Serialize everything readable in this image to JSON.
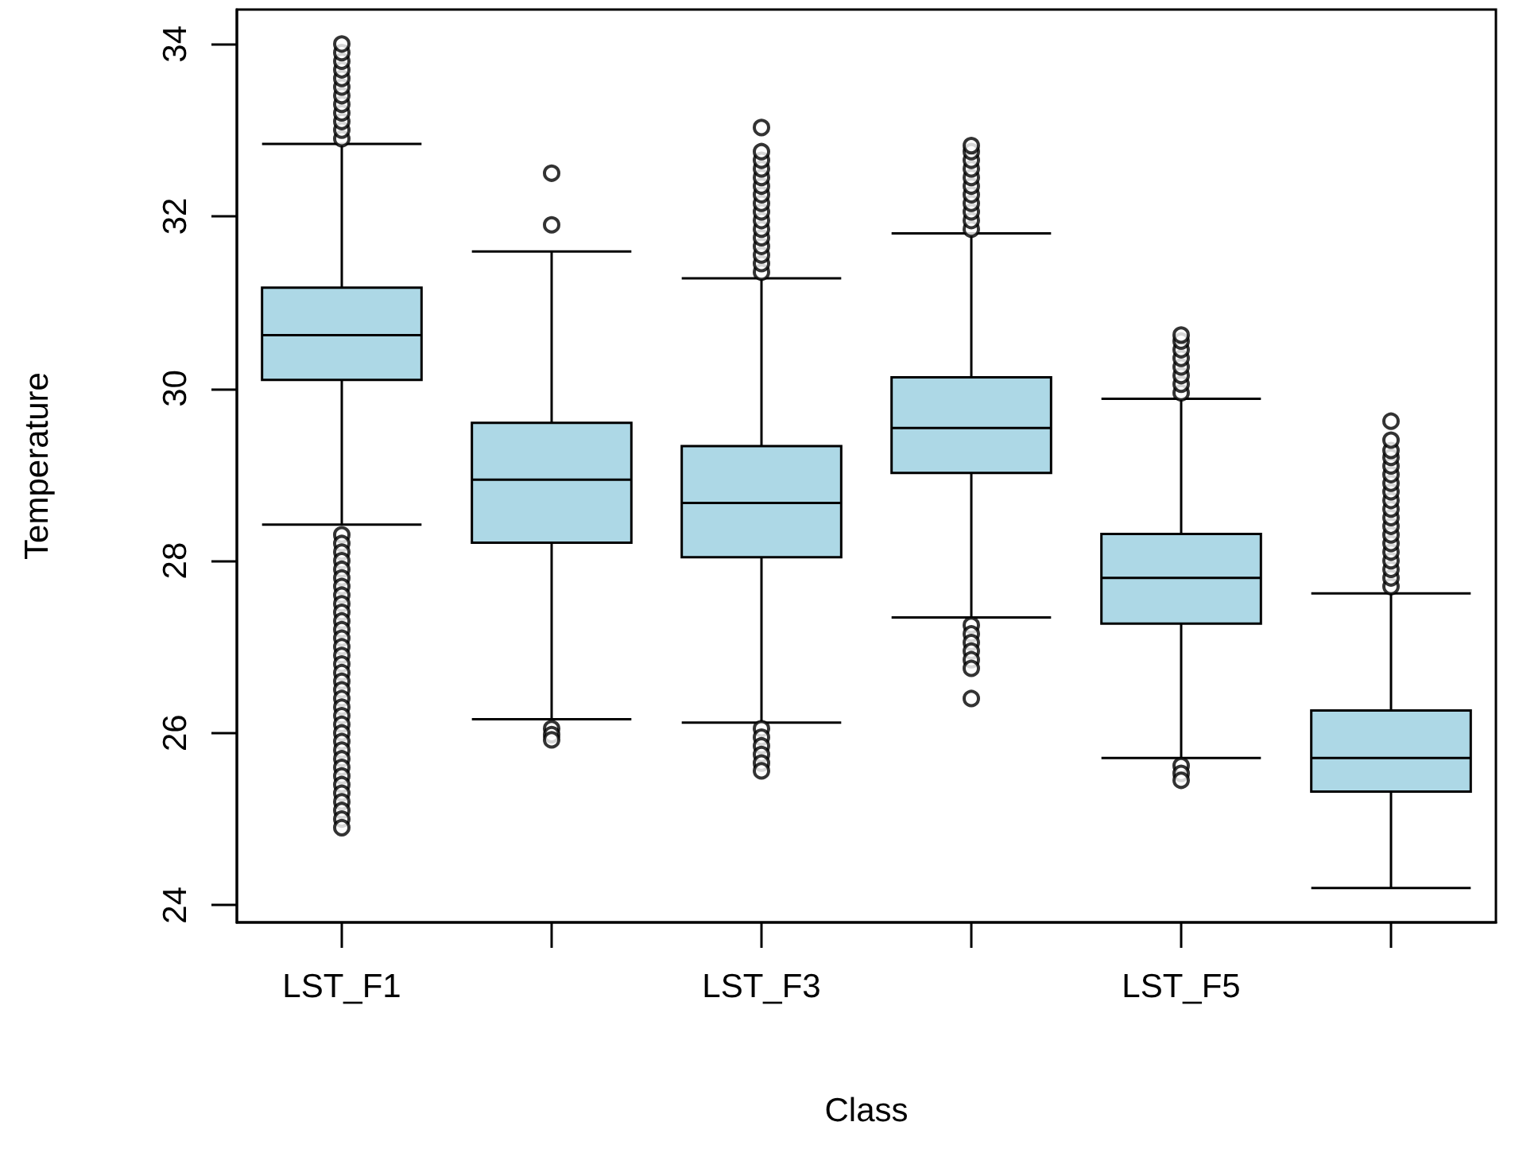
{
  "chart_data": {
    "type": "box",
    "xlabel": "Class",
    "ylabel": "Temperature",
    "color": "#add8e6",
    "marker": "circle",
    "grid": false,
    "categories": [
      "LST_F1",
      null,
      "LST_F3",
      null,
      "LST_F5",
      null
    ],
    "ylim": [
      23.8,
      34.4
    ],
    "yticks": [
      24,
      26,
      28,
      30,
      32,
      34
    ],
    "boxes": [
      {
        "low": 28.42,
        "q1": 30.1,
        "median": 30.62,
        "q3": 31.17,
        "high": 32.84,
        "outliers": [
          32.9,
          33.0,
          33.1,
          33.2,
          33.3,
          33.4,
          33.5,
          33.6,
          33.7,
          33.8,
          33.9,
          34.0,
          28.3,
          28.2,
          28.1,
          28.0,
          27.9,
          27.8,
          27.7,
          27.6,
          27.5,
          27.4,
          27.3,
          27.2,
          27.1,
          27.0,
          26.9,
          26.8,
          26.7,
          26.6,
          26.5,
          26.4,
          26.3,
          26.2,
          26.1,
          26.0,
          25.9,
          25.8,
          25.7,
          25.6,
          25.5,
          25.4,
          25.3,
          25.2,
          25.1,
          25.0,
          24.9
        ]
      },
      {
        "low": 26.16,
        "q1": 28.21,
        "median": 28.94,
        "q3": 29.6,
        "high": 31.59,
        "outliers": [
          32.5,
          31.9,
          26.05,
          25.98,
          25.92
        ]
      },
      {
        "low": 26.12,
        "q1": 28.04,
        "median": 28.67,
        "q3": 29.33,
        "high": 31.28,
        "outliers": [
          31.35,
          31.45,
          31.55,
          31.65,
          31.75,
          31.85,
          31.95,
          32.05,
          32.15,
          32.25,
          32.35,
          32.45,
          32.55,
          32.65,
          32.75,
          33.03,
          26.05,
          25.95,
          25.85,
          25.75,
          25.65,
          25.56
        ]
      },
      {
        "low": 27.34,
        "q1": 29.02,
        "median": 29.54,
        "q3": 30.13,
        "high": 31.8,
        "outliers": [
          31.85,
          31.95,
          32.05,
          32.15,
          32.25,
          32.35,
          32.45,
          32.55,
          32.65,
          32.75,
          32.82,
          27.25,
          27.15,
          27.05,
          26.95,
          26.85,
          26.75,
          26.4
        ]
      },
      {
        "low": 25.71,
        "q1": 27.27,
        "median": 27.8,
        "q3": 28.31,
        "high": 29.88,
        "outliers": [
          29.95,
          30.05,
          30.15,
          30.25,
          30.35,
          30.45,
          30.55,
          30.62,
          25.62,
          25.53,
          25.45
        ]
      },
      {
        "low": 24.2,
        "q1": 25.32,
        "median": 25.71,
        "q3": 26.26,
        "high": 27.62,
        "outliers": [
          27.7,
          27.8,
          27.9,
          28.0,
          28.1,
          28.2,
          28.3,
          28.4,
          28.5,
          28.6,
          28.7,
          28.8,
          28.9,
          29.0,
          29.1,
          29.2,
          29.28,
          29.4,
          29.62
        ]
      }
    ]
  }
}
